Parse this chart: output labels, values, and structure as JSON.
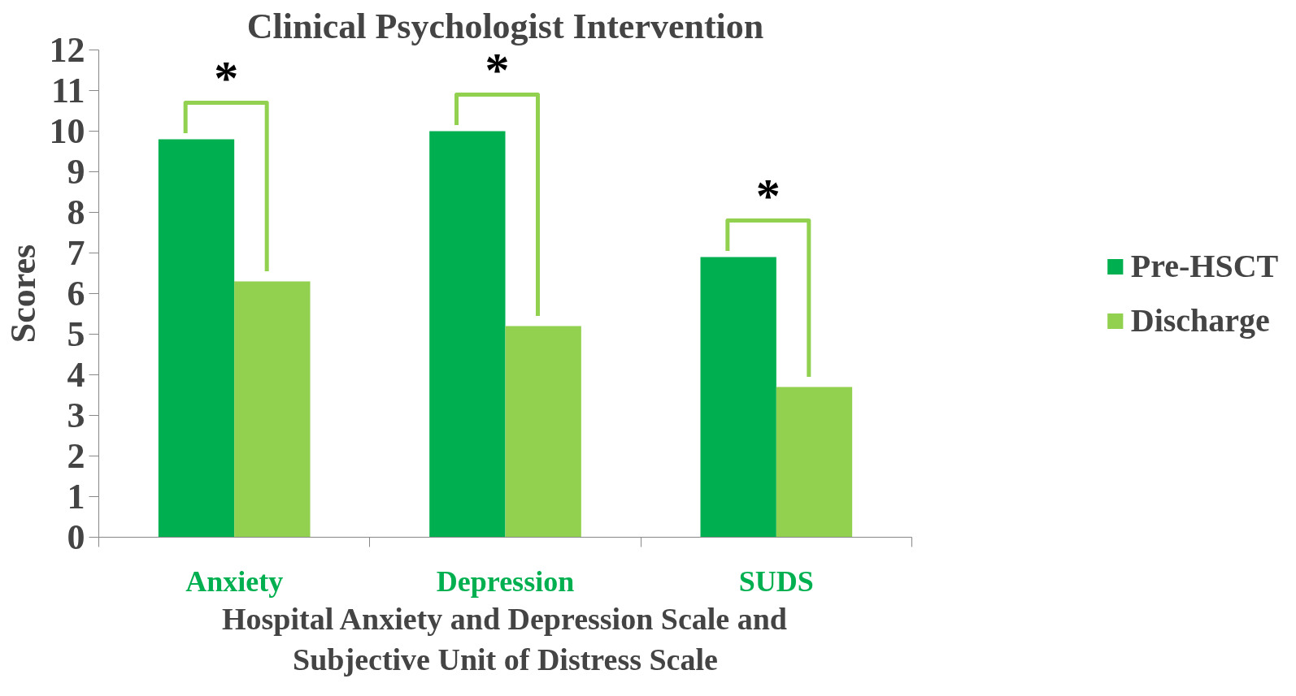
{
  "chart_data": {
    "type": "bar",
    "title": "Clinical Psychologist Intervention",
    "categories": [
      "Anxiety",
      "Depression",
      "SUDS"
    ],
    "series": [
      {
        "name": "Pre-HSCT",
        "color": "#00b050",
        "values": [
          9.8,
          10.0,
          6.9
        ]
      },
      {
        "name": "Discharge",
        "color": "#92d050",
        "values": [
          6.3,
          5.2,
          3.7
        ]
      }
    ],
    "xlabel": "Hospital Anxiety and Depression Scale and\nSubjective Unit of Distress Scale",
    "ylabel": "Scores",
    "ylim": [
      0,
      12
    ],
    "yticks": [
      0,
      1,
      2,
      3,
      4,
      5,
      6,
      7,
      8,
      9,
      10,
      11,
      12
    ],
    "grid": false,
    "legend": "right",
    "annotations": [
      "*",
      "*",
      "*"
    ]
  }
}
